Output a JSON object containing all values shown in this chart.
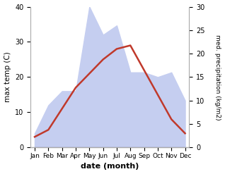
{
  "months": [
    "Jan",
    "Feb",
    "Mar",
    "Apr",
    "May",
    "Jun",
    "Jul",
    "Aug",
    "Sep",
    "Oct",
    "Nov",
    "Dec"
  ],
  "max_temp": [
    3,
    5,
    11,
    17,
    21,
    25,
    28,
    29,
    22,
    15,
    8,
    4
  ],
  "precipitation": [
    3,
    9,
    12,
    12,
    30,
    24,
    26,
    16,
    16,
    15,
    16,
    10
  ],
  "temp_color": "#c0392b",
  "precip_fill_color": "#c5cef0",
  "temp_ylim": [
    0,
    40
  ],
  "precip_ylim": [
    0,
    30
  ],
  "xlabel": "date (month)",
  "ylabel_left": "max temp (C)",
  "ylabel_right": "med. precipitation (kg/m2)"
}
